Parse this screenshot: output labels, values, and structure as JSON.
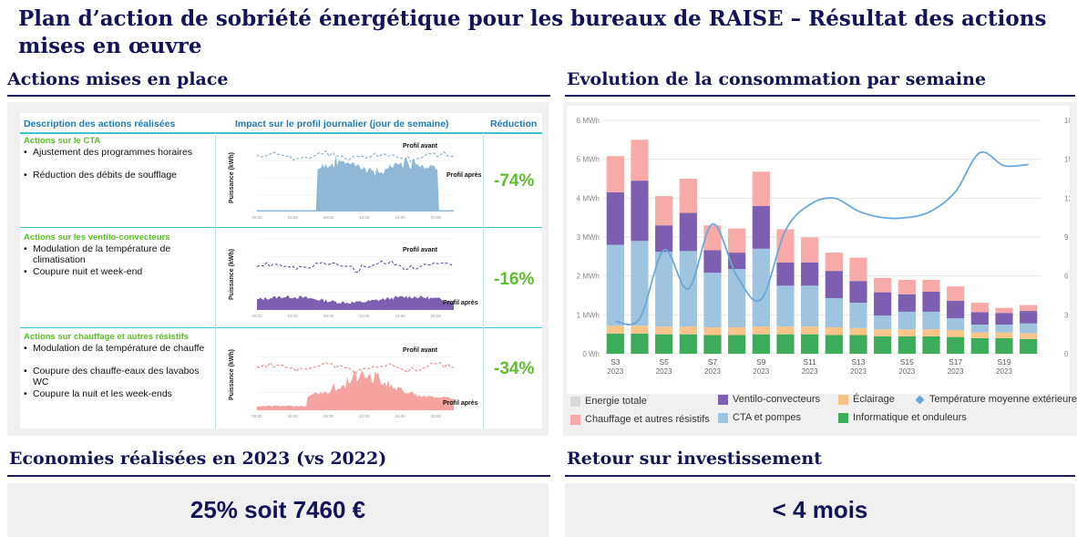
{
  "title": "Plan d’action de sobriété énergétique pour les bureaux de RAISE – Résultat des actions mises en œuvre",
  "sections": {
    "actions": "Actions mises en place",
    "evolution": "Evolution de la consommation par semaine",
    "savings": "Economies réalisées en 2023 (vs 2022)",
    "roi": "Retour sur investissement"
  },
  "kpis": {
    "savings_value": "25% soit 7460 €",
    "roi_value": "< 4 mois"
  },
  "actions_table": {
    "headers": {
      "description": "Description des actions réalisées",
      "impact": "Impact sur le profil journalier (jour de semaine)",
      "reduction": "Réduction"
    },
    "groups": [
      {
        "title": "Actions sur le CTA",
        "bullets": [
          "Ajustement des programmes horaires",
          "Réduction des débits de soufflage"
        ],
        "reduction": "-74%",
        "color": "#8fb8d8",
        "line_color": "#7fa4c8"
      },
      {
        "title": "Actions sur les ventilo-convecteurs",
        "bullets": [
          "Modulation de la température de climatisation",
          "Coupure nuit et week-end"
        ],
        "reduction": "-16%",
        "color": "#7d5fb2",
        "line_color": "#5d3f92"
      },
      {
        "title": "Actions sur chauffage et autres résistifs",
        "bullets": [
          "Modulation de la température de chauffe",
          "Coupure des chauffe-eaux des lavabos WC",
          "Coupure la nuit et les week-ends"
        ],
        "reduction": "-34%",
        "color": "#f4a3a1",
        "line_color": "#e98080"
      }
    ],
    "mini_chart": {
      "ylabel": "Puissance (kWh)",
      "label_before": "Profil avant",
      "label_after": "Profil après",
      "ticks_x": [
        "00:00",
        "04:00",
        "08:00",
        "12:00",
        "16:00",
        "20:00"
      ]
    }
  },
  "chart_data": {
    "type": "bar",
    "stacked": true,
    "x_labels": [
      "S3\n2023",
      "",
      "S5\n2023",
      "",
      "S7\n2023",
      "",
      "S9\n2023",
      "",
      "S11\n2023",
      "",
      "S13\n2023",
      "",
      "S15\n2023",
      "",
      "S17\n2023",
      "",
      "S19\n2023",
      ""
    ],
    "categories": [
      "S3",
      "S4",
      "S5",
      "S6",
      "S7",
      "S8",
      "S9",
      "S10",
      "S11",
      "S12",
      "S13",
      "S14",
      "S15",
      "S16",
      "S17",
      "S18",
      "S19",
      "S20"
    ],
    "ylim_left": [
      0,
      6
    ],
    "yticks_left": [
      "0 Wh",
      "1 MWh",
      "2 MWh",
      "3 MWh",
      "4 MWh",
      "5 MWh",
      "6 MWh"
    ],
    "ylim_right": [
      0,
      18
    ],
    "yticks_right": [
      "0 °C",
      "3 °C",
      "6 °C",
      "9 °C",
      "12 °C",
      "15 °C",
      "18 °C"
    ],
    "series": [
      {
        "name": "Informatique et onduleurs",
        "color": "#3cab5a",
        "values": [
          0.52,
          0.52,
          0.5,
          0.5,
          0.48,
          0.48,
          0.5,
          0.5,
          0.5,
          0.48,
          0.48,
          0.45,
          0.45,
          0.45,
          0.43,
          0.4,
          0.4,
          0.38
        ]
      },
      {
        "name": "Éclairage",
        "color": "#f8c48a",
        "values": [
          0.2,
          0.2,
          0.2,
          0.2,
          0.2,
          0.2,
          0.2,
          0.2,
          0.2,
          0.2,
          0.18,
          0.18,
          0.18,
          0.18,
          0.18,
          0.15,
          0.15,
          0.15
        ]
      },
      {
        "name": "CTA et pompes",
        "color": "#9fc4e0",
        "values": [
          2.08,
          2.18,
          1.92,
          1.94,
          1.4,
          1.5,
          2.0,
          1.05,
          1.05,
          0.75,
          0.65,
          0.35,
          0.45,
          0.45,
          0.3,
          0.2,
          0.2,
          0.25
        ]
      },
      {
        "name": "Ventilo-convecteurs",
        "color": "#7d5fb2",
        "values": [
          1.35,
          1.55,
          0.68,
          0.98,
          0.58,
          0.42,
          1.1,
          0.6,
          0.6,
          0.7,
          0.56,
          0.6,
          0.45,
          0.52,
          0.45,
          0.32,
          0.3,
          0.32
        ]
      },
      {
        "name": "Chauffage et autres résistifs",
        "color": "#f8aaa8",
        "values": [
          0.93,
          1.05,
          0.75,
          0.88,
          0.64,
          0.62,
          0.88,
          0.85,
          0.64,
          0.47,
          0.6,
          0.37,
          0.37,
          0.3,
          0.37,
          0.24,
          0.13,
          0.15
        ]
      }
    ],
    "temperature_series": {
      "name": "Température moyenne extérieure",
      "color": "#6aa8d8",
      "unit": "°C",
      "values": [
        2.5,
        2.7,
        8.0,
        5.0,
        10.0,
        6.0,
        4.2,
        9.5,
        11.5,
        12.0,
        11.0,
        10.5,
        10.5,
        11.0,
        12.5,
        15.5,
        14.5,
        14.6
      ]
    },
    "legend": [
      {
        "name": "Energie totale",
        "color": "#d8d8d8",
        "shape": "square"
      },
      {
        "name": "Chauffage et autres résistifs",
        "color": "#f8aaa8",
        "shape": "square"
      },
      {
        "name": "Ventilo-convecteurs",
        "color": "#7d5fb2",
        "shape": "square"
      },
      {
        "name": "CTA et pompes",
        "color": "#9fc4e0",
        "shape": "square"
      },
      {
        "name": "Éclairage",
        "color": "#f8c48a",
        "shape": "square"
      },
      {
        "name": "Informatique et onduleurs",
        "color": "#3cab5a",
        "shape": "square"
      },
      {
        "name": "Température moyenne extérieure",
        "color": "#6aa8d8",
        "shape": "diamond"
      }
    ],
    "legend_position": "bottom"
  },
  "colors": {
    "navy": "#13135a",
    "reduction_green": "#5cbf2a",
    "header_blue": "#1e79b8",
    "teal_rule": "#3ec3d0"
  }
}
